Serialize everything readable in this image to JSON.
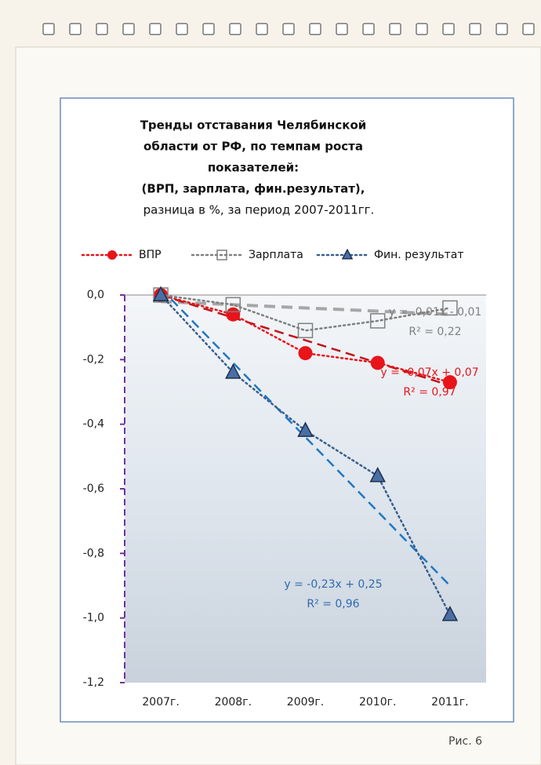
{
  "chart_data": {
    "type": "line",
    "title": [
      "Тренды   отставания Челябинской",
      "области от РФ, по темпам роста",
      "показателей:",
      "(ВРП,  зарплата, фин.результат),"
    ],
    "subtitle": "разница  в %,  за период  2007-2011гг.",
    "categories": [
      "2007г.",
      "2008г.",
      "2009г.",
      "2010г.",
      "2011г."
    ],
    "series": [
      {
        "name": "ВПР",
        "color": "#e8141a",
        "marker": "circle",
        "values": [
          0,
          -0.06,
          -0.18,
          -0.21,
          -0.27
        ]
      },
      {
        "name": "Зарплата",
        "color": "#7f7f7f",
        "marker": "square",
        "values": [
          0,
          -0.03,
          -0.11,
          -0.08,
          -0.04
        ]
      },
      {
        "name": "Фин. результат",
        "color": "#3a5f8f",
        "marker": "triangle",
        "values": [
          0,
          -0.24,
          -0.42,
          -0.56,
          -0.99
        ]
      }
    ],
    "trendlines": [
      {
        "series": 1,
        "color": "#a6a6a6",
        "slope": -0.01,
        "intercept": -0.01,
        "equation": "y = -0,01x - 0,01",
        "r2_label": "R² = 0,22",
        "label_color": "#7f7f7f"
      },
      {
        "series": 0,
        "color": "#c0141a",
        "slope": -0.07,
        "intercept": 0.07,
        "equation": "y = -0,07x + 0,07",
        "r2_label": "R² = 0,97",
        "label_color": "#e8141a"
      },
      {
        "series": 2,
        "color": "#1f77c4",
        "slope": -0.23,
        "intercept": 0.25,
        "equation": "y = -0,23x + 0,25",
        "r2_label": "R² = 0,96",
        "label_color": "#2e6ab0"
      }
    ],
    "ylim": [
      -1.2,
      0
    ],
    "yticks": [
      {
        "value": 0,
        "label": "0,0"
      },
      {
        "value": -0.2,
        "label": "-0,2"
      },
      {
        "value": -0.4,
        "label": "-0,4"
      },
      {
        "value": -0.6,
        "label": "-0,6"
      },
      {
        "value": -0.8,
        "label": "-0,8"
      },
      {
        "value": -1.0,
        "label": "-1,0"
      },
      {
        "value": -1.2,
        "label": "-1,2"
      }
    ],
    "legend": "top",
    "caption": "Рис. 6"
  }
}
